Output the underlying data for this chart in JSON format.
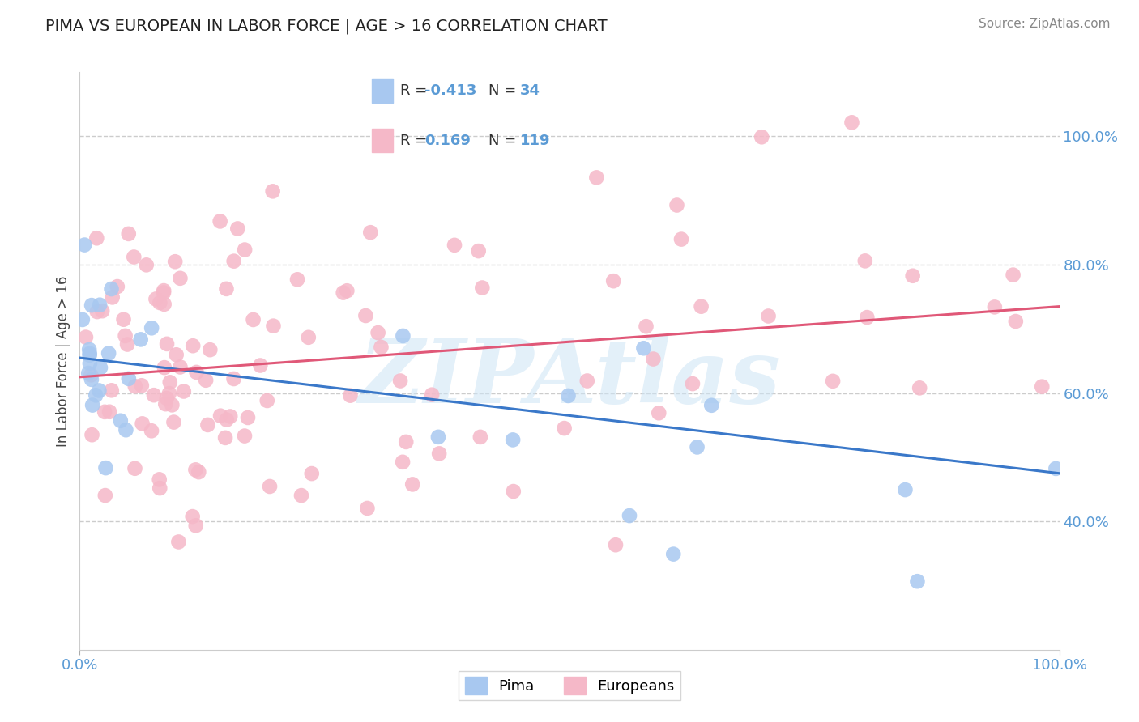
{
  "title": "PIMA VS EUROPEAN IN LABOR FORCE | AGE > 16 CORRELATION CHART",
  "source_text": "Source: ZipAtlas.com",
  "ylabel": "In Labor Force | Age > 16",
  "xlim": [
    0.0,
    1.0
  ],
  "ylim": [
    0.2,
    1.1
  ],
  "yticks": [
    0.4,
    0.6,
    0.8,
    1.0
  ],
  "ytick_labels": [
    "40.0%",
    "60.0%",
    "80.0%",
    "100.0%"
  ],
  "xtick_labels": [
    "0.0%",
    "100.0%"
  ],
  "xticks": [
    0.0,
    1.0
  ],
  "pima_color": "#a8c8f0",
  "european_color": "#f5b8c8",
  "pima_line_color": "#3a78c9",
  "european_line_color": "#e05878",
  "legend_r_pima": "-0.413",
  "legend_n_pima": "34",
  "legend_r_european": "0.169",
  "legend_n_european": "119",
  "watermark": "ZIPAtlas",
  "background_color": "#ffffff",
  "grid_color": "#cccccc",
  "title_fontsize": 14,
  "pima_line_x0": 0.0,
  "pima_line_y0": 0.655,
  "pima_line_x1": 1.0,
  "pima_line_y1": 0.475,
  "eur_line_x0": 0.0,
  "eur_line_y0": 0.625,
  "eur_line_x1": 1.0,
  "eur_line_y1": 0.735
}
